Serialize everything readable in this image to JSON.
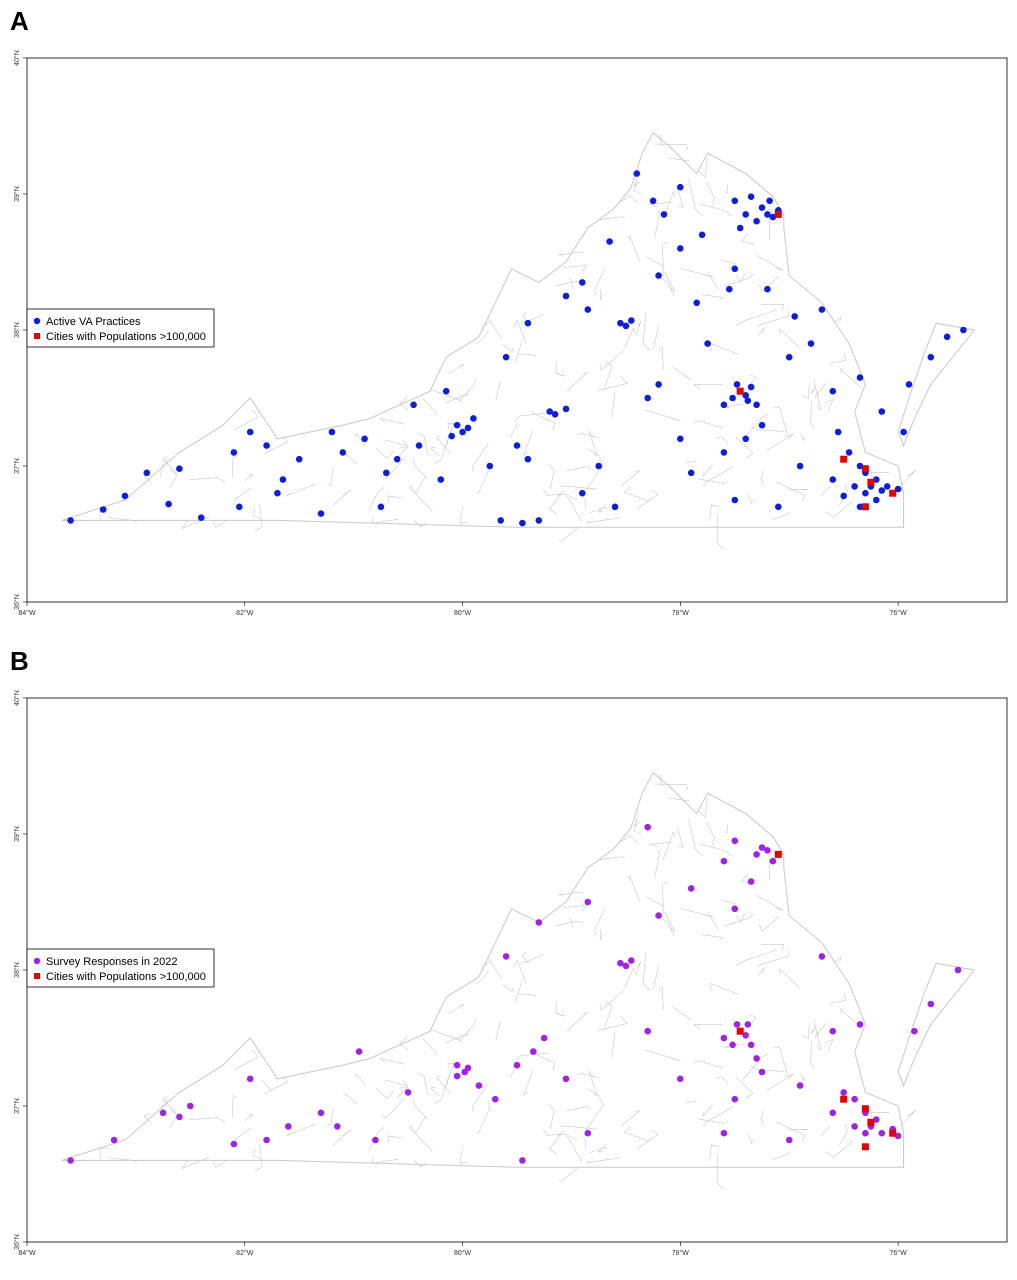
{
  "figure": {
    "panels": [
      {
        "letter": "A",
        "legend": {
          "entries": [
            {
              "label": "Active VA Practices",
              "color": "#0a1ee6",
              "marker": "circle"
            },
            {
              "label": "Cities with Populations >100,000",
              "color": "#e60000",
              "marker": "square"
            }
          ]
        }
      },
      {
        "letter": "B",
        "legend": {
          "entries": [
            {
              "label": "Survey Responses in 2022",
              "color": "#a020f0",
              "marker": "circle"
            },
            {
              "label": "Cities with Populations >100,000",
              "color": "#e60000",
              "marker": "square"
            }
          ]
        }
      }
    ],
    "x_ticks": [
      "84°W",
      "82°W",
      "80°W",
      "78°W",
      "76°W"
    ],
    "y_ticks": [
      "36°N",
      "37°N",
      "38°N",
      "39°N",
      "40°N"
    ],
    "outline_color": "#c8c8c8"
  },
  "chart_data": [
    {
      "type": "scatter",
      "xlim": [
        -84,
        -75
      ],
      "ylim": [
        36,
        40
      ],
      "series": [
        {
          "name": "Active VA Practices",
          "color": "#0a1ee6",
          "points": [
            [
              -83.6,
              36.6
            ],
            [
              -83.3,
              36.68
            ],
            [
              -83.1,
              36.78
            ],
            [
              -82.9,
              36.95
            ],
            [
              -82.7,
              36.72
            ],
            [
              -82.6,
              36.98
            ],
            [
              -82.4,
              36.62
            ],
            [
              -82.1,
              37.1
            ],
            [
              -81.95,
              37.25
            ],
            [
              -81.8,
              37.15
            ],
            [
              -82.05,
              36.7
            ],
            [
              -81.7,
              36.8
            ],
            [
              -81.5,
              37.05
            ],
            [
              -81.3,
              36.65
            ],
            [
              -81.1,
              37.1
            ],
            [
              -80.9,
              37.2
            ],
            [
              -80.75,
              36.7
            ],
            [
              -80.6,
              37.05
            ],
            [
              -80.4,
              37.15
            ],
            [
              -80.2,
              36.9
            ],
            [
              -80.05,
              37.3
            ],
            [
              -80.0,
              37.25
            ],
            [
              -79.95,
              37.28
            ],
            [
              -80.1,
              37.22
            ],
            [
              -79.9,
              37.35
            ],
            [
              -79.65,
              36.6
            ],
            [
              -79.5,
              37.15
            ],
            [
              -79.2,
              37.4
            ],
            [
              -79.15,
              37.38
            ],
            [
              -79.05,
              37.42
            ],
            [
              -79.4,
              37.05
            ],
            [
              -79.6,
              37.8
            ],
            [
              -79.4,
              38.05
            ],
            [
              -79.05,
              38.25
            ],
            [
              -78.85,
              38.15
            ],
            [
              -78.55,
              38.05
            ],
            [
              -78.5,
              38.03
            ],
            [
              -78.45,
              38.07
            ],
            [
              -78.2,
              38.4
            ],
            [
              -78.0,
              38.6
            ],
            [
              -78.3,
              37.5
            ],
            [
              -78.0,
              37.2
            ],
            [
              -78.6,
              36.7
            ],
            [
              -78.9,
              36.8
            ],
            [
              -79.3,
              36.6
            ],
            [
              -79.45,
              36.58
            ],
            [
              -78.4,
              39.15
            ],
            [
              -78.25,
              38.95
            ],
            [
              -77.8,
              38.7
            ],
            [
              -77.5,
              38.95
            ],
            [
              -77.35,
              38.98
            ],
            [
              -77.25,
              38.9
            ],
            [
              -77.2,
              38.85
            ],
            [
              -77.15,
              38.83
            ],
            [
              -77.1,
              38.88
            ],
            [
              -77.18,
              38.95
            ],
            [
              -77.3,
              38.8
            ],
            [
              -77.45,
              38.75
            ],
            [
              -77.4,
              38.85
            ],
            [
              -77.5,
              38.45
            ],
            [
              -77.55,
              38.3
            ],
            [
              -77.48,
              37.6
            ],
            [
              -77.45,
              37.55
            ],
            [
              -77.4,
              37.52
            ],
            [
              -77.52,
              37.5
            ],
            [
              -77.6,
              37.45
            ],
            [
              -77.38,
              37.48
            ],
            [
              -77.35,
              37.58
            ],
            [
              -77.3,
              37.45
            ],
            [
              -77.25,
              37.3
            ],
            [
              -77.4,
              37.2
            ],
            [
              -77.6,
              37.1
            ],
            [
              -77.9,
              36.95
            ],
            [
              -77.5,
              36.75
            ],
            [
              -77.1,
              36.7
            ],
            [
              -76.9,
              37.0
            ],
            [
              -76.6,
              36.9
            ],
            [
              -76.55,
              37.25
            ],
            [
              -76.45,
              37.1
            ],
            [
              -76.35,
              37.0
            ],
            [
              -76.3,
              36.95
            ],
            [
              -76.25,
              36.85
            ],
            [
              -76.2,
              36.9
            ],
            [
              -76.15,
              36.82
            ],
            [
              -76.1,
              36.85
            ],
            [
              -76.05,
              36.8
            ],
            [
              -76.0,
              36.83
            ],
            [
              -76.3,
              36.8
            ],
            [
              -76.4,
              36.85
            ],
            [
              -76.5,
              36.78
            ],
            [
              -76.35,
              36.7
            ],
            [
              -76.2,
              36.75
            ],
            [
              -76.6,
              37.55
            ],
            [
              -76.8,
              37.9
            ],
            [
              -76.7,
              38.15
            ],
            [
              -76.35,
              37.65
            ],
            [
              -76.15,
              37.4
            ],
            [
              -75.9,
              37.6
            ],
            [
              -75.7,
              37.8
            ],
            [
              -75.55,
              37.95
            ],
            [
              -75.4,
              38.0
            ],
            [
              -75.95,
              37.25
            ],
            [
              -78.0,
              39.05
            ],
            [
              -78.15,
              38.85
            ],
            [
              -78.65,
              38.65
            ],
            [
              -78.9,
              38.35
            ],
            [
              -80.15,
              37.55
            ],
            [
              -80.45,
              37.45
            ],
            [
              -81.2,
              37.25
            ],
            [
              -81.65,
              36.9
            ],
            [
              -80.7,
              36.95
            ],
            [
              -79.75,
              37.0
            ],
            [
              -78.75,
              37.0
            ],
            [
              -78.2,
              37.6
            ],
            [
              -77.75,
              37.9
            ],
            [
              -77.85,
              38.2
            ],
            [
              -77.2,
              38.3
            ],
            [
              -77.0,
              37.8
            ],
            [
              -76.95,
              38.1
            ]
          ]
        },
        {
          "name": "Cities with Populations >100,000",
          "color": "#e60000",
          "points": [
            [
              -77.1,
              38.85
            ],
            [
              -77.45,
              37.55
            ],
            [
              -76.5,
              37.05
            ],
            [
              -76.3,
              36.98
            ],
            [
              -76.25,
              36.88
            ],
            [
              -76.3,
              36.7
            ],
            [
              -76.05,
              36.8
            ]
          ]
        }
      ]
    },
    {
      "type": "scatter",
      "xlim": [
        -84,
        -75
      ],
      "ylim": [
        36,
        40
      ],
      "series": [
        {
          "name": "Survey Responses in 2022",
          "color": "#a020f0",
          "points": [
            [
              -83.6,
              36.6
            ],
            [
              -83.2,
              36.75
            ],
            [
              -82.75,
              36.95
            ],
            [
              -82.6,
              36.92
            ],
            [
              -82.5,
              37.0
            ],
            [
              -82.1,
              36.72
            ],
            [
              -81.95,
              37.2
            ],
            [
              -81.8,
              36.75
            ],
            [
              -81.6,
              36.85
            ],
            [
              -81.3,
              36.95
            ],
            [
              -81.15,
              36.85
            ],
            [
              -80.95,
              37.4
            ],
            [
              -80.8,
              36.75
            ],
            [
              -80.5,
              37.1
            ],
            [
              -80.05,
              37.3
            ],
            [
              -79.98,
              37.25
            ],
            [
              -79.95,
              37.28
            ],
            [
              -80.05,
              37.22
            ],
            [
              -79.85,
              37.15
            ],
            [
              -79.7,
              37.05
            ],
            [
              -79.5,
              37.3
            ],
            [
              -79.35,
              37.4
            ],
            [
              -79.25,
              37.5
            ],
            [
              -79.05,
              37.2
            ],
            [
              -78.85,
              36.8
            ],
            [
              -79.45,
              36.6
            ],
            [
              -79.6,
              38.1
            ],
            [
              -79.3,
              38.35
            ],
            [
              -78.85,
              38.5
            ],
            [
              -78.55,
              38.05
            ],
            [
              -78.5,
              38.03
            ],
            [
              -78.45,
              38.07
            ],
            [
              -78.3,
              37.55
            ],
            [
              -78.0,
              37.2
            ],
            [
              -78.2,
              38.4
            ],
            [
              -77.9,
              38.6
            ],
            [
              -78.3,
              39.05
            ],
            [
              -77.5,
              38.95
            ],
            [
              -77.3,
              38.85
            ],
            [
              -77.25,
              38.9
            ],
            [
              -77.2,
              38.88
            ],
            [
              -77.15,
              38.8
            ],
            [
              -77.35,
              38.65
            ],
            [
              -77.6,
              38.8
            ],
            [
              -77.5,
              38.45
            ],
            [
              -77.48,
              37.6
            ],
            [
              -77.45,
              37.55
            ],
            [
              -77.4,
              37.52
            ],
            [
              -77.52,
              37.45
            ],
            [
              -77.6,
              37.5
            ],
            [
              -77.38,
              37.6
            ],
            [
              -77.35,
              37.45
            ],
            [
              -77.3,
              37.35
            ],
            [
              -77.25,
              37.25
            ],
            [
              -77.5,
              37.05
            ],
            [
              -77.6,
              36.8
            ],
            [
              -77.0,
              36.75
            ],
            [
              -76.9,
              37.15
            ],
            [
              -76.6,
              36.95
            ],
            [
              -76.5,
              37.1
            ],
            [
              -76.4,
              37.05
            ],
            [
              -76.3,
              36.95
            ],
            [
              -76.25,
              36.85
            ],
            [
              -76.2,
              36.9
            ],
            [
              -76.15,
              36.8
            ],
            [
              -76.05,
              36.83
            ],
            [
              -76.0,
              36.78
            ],
            [
              -76.3,
              36.8
            ],
            [
              -76.4,
              36.85
            ],
            [
              -76.6,
              37.55
            ],
            [
              -76.7,
              38.1
            ],
            [
              -76.35,
              37.6
            ],
            [
              -75.85,
              37.55
            ],
            [
              -75.7,
              37.75
            ],
            [
              -75.45,
              38.0
            ]
          ]
        },
        {
          "name": "Cities with Populations >100,000",
          "color": "#e60000",
          "points": [
            [
              -77.1,
              38.85
            ],
            [
              -77.45,
              37.55
            ],
            [
              -76.5,
              37.05
            ],
            [
              -76.3,
              36.98
            ],
            [
              -76.25,
              36.88
            ],
            [
              -76.3,
              36.7
            ],
            [
              -76.05,
              36.8
            ]
          ]
        }
      ]
    }
  ]
}
